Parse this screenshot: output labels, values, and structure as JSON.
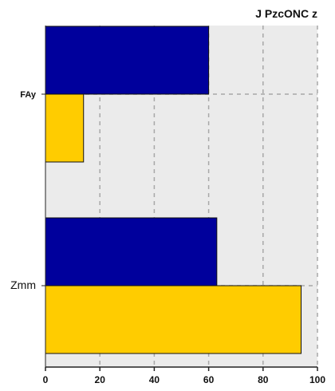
{
  "chart_data": {
    "type": "bar",
    "orientation": "horizontal",
    "title": "J   PzcONC z",
    "xlabel": "",
    "ylabel": "",
    "categories": [
      "FAy",
      "Zmm"
    ],
    "series": [
      {
        "color": "#00009c",
        "values": [
          60,
          63
        ]
      },
      {
        "color": "#ffcc00",
        "values": [
          14,
          94
        ]
      }
    ],
    "xlim": [
      0,
      100
    ],
    "xticks": [
      0,
      20,
      40,
      60,
      80,
      100
    ],
    "grid": true,
    "legend": "none"
  }
}
